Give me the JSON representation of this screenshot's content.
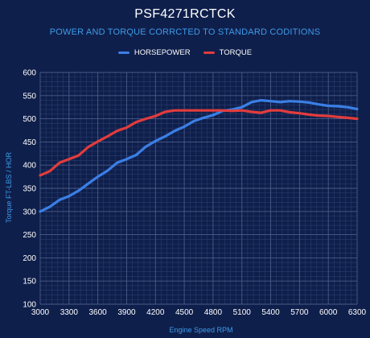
{
  "chart_data": {
    "type": "line",
    "title": "PSF4271RCTCK",
    "subtitle": "POWER AND TORQUE CORRCTED TO STANDARD CODITIONS",
    "xlabel": "Engine Speed RPM",
    "ylabel": "Torque FT-LBS / HOR",
    "xlim": [
      3000,
      6300
    ],
    "ylim": [
      100,
      600
    ],
    "x_ticks": [
      3000,
      3300,
      3600,
      3900,
      4200,
      4500,
      4800,
      5100,
      5400,
      5700,
      6000,
      6300
    ],
    "y_ticks": [
      100,
      150,
      200,
      250,
      300,
      350,
      400,
      450,
      500,
      550,
      600
    ],
    "grid": true,
    "legend_position": "top-center",
    "x": [
      3000,
      3100,
      3200,
      3300,
      3400,
      3500,
      3600,
      3700,
      3800,
      3900,
      4000,
      4100,
      4200,
      4300,
      4400,
      4500,
      4600,
      4700,
      4800,
      4900,
      5000,
      5100,
      5200,
      5300,
      5400,
      5500,
      5600,
      5700,
      5800,
      5900,
      6000,
      6100,
      6200,
      6300
    ],
    "series": [
      {
        "name": "HORSEPOWER",
        "color": "#3a7fe6",
        "values": [
          300,
          310,
          325,
          333,
          345,
          360,
          375,
          388,
          405,
          413,
          422,
          440,
          452,
          462,
          474,
          483,
          495,
          502,
          508,
          517,
          520,
          525,
          536,
          540,
          538,
          536,
          538,
          537,
          535,
          531,
          528,
          527,
          525,
          521
        ]
      },
      {
        "name": "TORQUE",
        "color": "#e23c3c",
        "values": [
          378,
          387,
          405,
          413,
          421,
          439,
          451,
          462,
          474,
          481,
          493,
          500,
          506,
          515,
          518,
          518,
          518,
          518,
          518,
          518,
          517,
          518,
          515,
          513,
          518,
          518,
          514,
          512,
          509,
          507,
          506,
          504,
          502,
          500
        ]
      }
    ]
  }
}
